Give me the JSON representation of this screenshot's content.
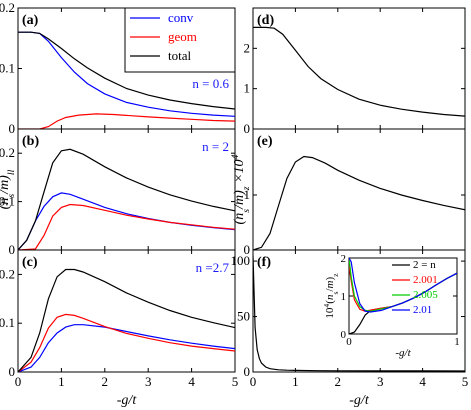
{
  "chart_data": [
    {
      "panel": "(a)",
      "type": "line",
      "annotation": "n = 0.6",
      "xlim": [
        0,
        5
      ],
      "ylim": [
        0,
        0.2
      ],
      "xticks": [
        "0",
        "1",
        "2",
        "3",
        "4",
        "5"
      ],
      "yticks": [
        "0",
        "0.1",
        "0.2"
      ],
      "ylabel": "",
      "series": [
        {
          "name": "conv",
          "color": "#0000ff",
          "x": [
            0,
            0.3,
            0.5,
            0.7,
            1.0,
            1.3,
            1.6,
            2.0,
            2.5,
            3.0,
            3.5,
            4.0,
            4.5,
            5.0
          ],
          "y": [
            0.16,
            0.16,
            0.158,
            0.145,
            0.118,
            0.094,
            0.075,
            0.058,
            0.044,
            0.036,
            0.03,
            0.026,
            0.023,
            0.021
          ]
        },
        {
          "name": "geom",
          "color": "#ff0000",
          "x": [
            0,
            0.5,
            0.7,
            0.9,
            1.1,
            1.4,
            1.8,
            2.2,
            2.6,
            3.0,
            3.5,
            4.0,
            4.5,
            5.0
          ],
          "y": [
            0,
            0,
            0.004,
            0.013,
            0.019,
            0.023,
            0.025,
            0.024,
            0.022,
            0.02,
            0.018,
            0.016,
            0.014,
            0.013
          ]
        },
        {
          "name": "total",
          "color": "#000000",
          "x": [
            0,
            0.3,
            0.5,
            0.7,
            1.0,
            1.3,
            1.6,
            2.0,
            2.5,
            3.0,
            3.5,
            4.0,
            4.5,
            5.0
          ],
          "y": [
            0.16,
            0.16,
            0.158,
            0.149,
            0.133,
            0.116,
            0.101,
            0.084,
            0.067,
            0.056,
            0.048,
            0.042,
            0.037,
            0.033
          ]
        }
      ]
    },
    {
      "panel": "(b)",
      "type": "line",
      "annotation": "n = 2",
      "xlim": [
        0,
        5
      ],
      "ylim": [
        0,
        0.25
      ],
      "xticks": [
        "0",
        "1",
        "2",
        "3",
        "4",
        "5"
      ],
      "yticks": [
        "0",
        "0.1",
        "0.2"
      ],
      "ylabel": "(n_s/m)_ll",
      "series": [
        {
          "name": "conv",
          "color": "#0000ff",
          "x": [
            0,
            0.2,
            0.4,
            0.6,
            0.8,
            1.0,
            1.2,
            1.5,
            2.0,
            2.5,
            3.0,
            3.5,
            4.0,
            4.5,
            5.0
          ],
          "y": [
            0,
            0.02,
            0.06,
            0.09,
            0.11,
            0.118,
            0.115,
            0.105,
            0.088,
            0.075,
            0.065,
            0.057,
            0.051,
            0.046,
            0.042
          ]
        },
        {
          "name": "geom",
          "color": "#ff0000",
          "x": [
            0,
            0.4,
            0.6,
            0.8,
            1.0,
            1.2,
            1.5,
            2.0,
            2.5,
            3.0,
            3.5,
            4.0,
            4.5,
            5.0
          ],
          "y": [
            0,
            0.002,
            0.03,
            0.07,
            0.088,
            0.094,
            0.092,
            0.082,
            0.072,
            0.064,
            0.057,
            0.052,
            0.047,
            0.043
          ]
        },
        {
          "name": "total",
          "color": "#000000",
          "x": [
            0,
            0.2,
            0.4,
            0.6,
            0.8,
            1.0,
            1.2,
            1.5,
            2.0,
            2.5,
            3.0,
            3.5,
            4.0,
            4.5,
            5.0
          ],
          "y": [
            0,
            0.02,
            0.06,
            0.12,
            0.18,
            0.205,
            0.208,
            0.198,
            0.172,
            0.149,
            0.13,
            0.114,
            0.101,
            0.09,
            0.081
          ]
        }
      ]
    },
    {
      "panel": "(c)",
      "type": "line",
      "annotation": "n =2.7",
      "xlim": [
        0,
        5
      ],
      "ylim": [
        0,
        0.25
      ],
      "xticks": [
        "0",
        "1",
        "2",
        "3",
        "4",
        "5"
      ],
      "yticks": [
        "0",
        "0.1",
        "0.2"
      ],
      "xlabel": "-g/t",
      "series": [
        {
          "name": "conv",
          "color": "#0000ff",
          "x": [
            0,
            0.3,
            0.5,
            0.7,
            0.9,
            1.1,
            1.3,
            1.5,
            2.0,
            2.5,
            3.0,
            3.5,
            4.0,
            4.5,
            5.0
          ],
          "y": [
            0,
            0.01,
            0.03,
            0.06,
            0.08,
            0.092,
            0.097,
            0.097,
            0.092,
            0.083,
            0.074,
            0.066,
            0.059,
            0.053,
            0.048
          ]
        },
        {
          "name": "geom",
          "color": "#ff0000",
          "x": [
            0,
            0.3,
            0.5,
            0.7,
            0.9,
            1.1,
            1.3,
            1.5,
            2.0,
            2.5,
            3.0,
            3.5,
            4.0,
            4.5,
            5.0
          ],
          "y": [
            0,
            0.02,
            0.05,
            0.09,
            0.112,
            0.118,
            0.116,
            0.11,
            0.093,
            0.079,
            0.069,
            0.06,
            0.053,
            0.048,
            0.043
          ]
        },
        {
          "name": "total",
          "color": "#000000",
          "x": [
            0,
            0.3,
            0.5,
            0.7,
            0.9,
            1.1,
            1.3,
            1.5,
            2.0,
            2.5,
            3.0,
            3.5,
            4.0,
            4.5,
            5.0
          ],
          "y": [
            0,
            0.03,
            0.08,
            0.15,
            0.195,
            0.21,
            0.21,
            0.205,
            0.185,
            0.162,
            0.143,
            0.126,
            0.112,
            0.101,
            0.091
          ]
        }
      ]
    },
    {
      "panel": "(d)",
      "type": "line",
      "xlim": [
        0,
        5
      ],
      "ylim": [
        0,
        3
      ],
      "xticks": [
        "0",
        "1",
        "2",
        "3",
        "4",
        "5"
      ],
      "yticks": [
        "0",
        "1",
        "2"
      ],
      "series": [
        {
          "color": "#000000",
          "x": [
            0,
            0.3,
            0.5,
            0.7,
            1.0,
            1.3,
            1.6,
            2.0,
            2.5,
            3.0,
            3.5,
            4.0,
            4.5,
            5.0
          ],
          "y": [
            2.52,
            2.52,
            2.5,
            2.35,
            1.95,
            1.55,
            1.25,
            0.98,
            0.74,
            0.59,
            0.49,
            0.42,
            0.36,
            0.32
          ]
        }
      ]
    },
    {
      "panel": "(e)",
      "type": "line",
      "xlim": [
        0,
        5
      ],
      "ylim": [
        0,
        2.2
      ],
      "xticks": [
        "0",
        "1",
        "2",
        "3",
        "4",
        "5"
      ],
      "yticks": [
        "0",
        "1"
      ],
      "ylabel": "(n_s/m)_z ×10^4",
      "series": [
        {
          "color": "#000000",
          "x": [
            0,
            0.2,
            0.4,
            0.6,
            0.8,
            1.0,
            1.2,
            1.4,
            1.7,
            2.0,
            2.5,
            3.0,
            3.5,
            4.0,
            4.5,
            5.0
          ],
          "y": [
            0,
            0.05,
            0.3,
            0.8,
            1.3,
            1.6,
            1.7,
            1.68,
            1.58,
            1.45,
            1.27,
            1.12,
            1.0,
            0.9,
            0.81,
            0.73
          ]
        }
      ]
    },
    {
      "panel": "(f)",
      "type": "line",
      "xlim": [
        0,
        5
      ],
      "ylim": [
        0,
        110
      ],
      "xticks": [
        "0",
        "1",
        "2",
        "3",
        "4",
        "5"
      ],
      "yticks": [
        "0",
        "50",
        "100"
      ],
      "xlabel": "-g/t",
      "series": [
        {
          "color": "#000000",
          "x": [
            0,
            0.05,
            0.1,
            0.15,
            0.2,
            0.3,
            0.4,
            0.6,
            0.8,
            1.0,
            1.5,
            2.0,
            3.0,
            4.0,
            5.0
          ],
          "y": [
            105,
            40,
            20,
            12,
            8,
            4.5,
            3,
            2,
            1.6,
            1.4,
            1.2,
            1.1,
            1.0,
            0.95,
            0.9
          ]
        }
      ]
    },
    {
      "panel": "(f) inset",
      "type": "line",
      "xlim": [
        0,
        1
      ],
      "ylim": [
        0,
        2
      ],
      "xticks": [
        "0",
        "1"
      ],
      "yticks": [
        "0",
        "1",
        "2"
      ],
      "xlabel": "-g/t",
      "ylabel": "10^4(n_s/m)_z",
      "legend": "top-right",
      "series": [
        {
          "name": "2 = n",
          "color": "#000000",
          "x": [
            0,
            0.05,
            0.1,
            0.15,
            0.2,
            0.3,
            0.4,
            0.5,
            0.6,
            0.7,
            0.8,
            0.9,
            1.0
          ],
          "y": [
            0,
            0.05,
            0.25,
            0.5,
            0.62,
            0.68,
            0.72,
            0.82,
            0.95,
            1.1,
            1.28,
            1.45,
            1.6
          ]
        },
        {
          "name": "2.001",
          "color": "#ff0000",
          "x": [
            0,
            0.02,
            0.05,
            0.1,
            0.15,
            0.2,
            0.3,
            0.4,
            0.5,
            0.6,
            0.7,
            0.8,
            0.9,
            1.0
          ],
          "y": [
            1.8,
            1.4,
            0.9,
            0.65,
            0.6,
            0.63,
            0.68,
            0.72,
            0.82,
            0.95,
            1.1,
            1.28,
            1.45,
            1.6
          ]
        },
        {
          "name": "2.005",
          "color": "#00cc00",
          "x": [
            0,
            0.02,
            0.05,
            0.1,
            0.15,
            0.2,
            0.3,
            0.4,
            0.5,
            0.6,
            0.7,
            0.8,
            0.9,
            1.0
          ],
          "y": [
            2.0,
            1.5,
            1.0,
            0.72,
            0.62,
            0.6,
            0.66,
            0.72,
            0.82,
            0.95,
            1.1,
            1.28,
            1.45,
            1.6
          ]
        },
        {
          "name": "2.01",
          "color": "#0000ff",
          "x": [
            0,
            0.02,
            0.05,
            0.1,
            0.15,
            0.2,
            0.3,
            0.4,
            0.5,
            0.6,
            0.7,
            0.8,
            0.9,
            1.0
          ],
          "y": [
            2.0,
            1.9,
            1.35,
            0.8,
            0.6,
            0.58,
            0.62,
            0.72,
            0.82,
            0.95,
            1.1,
            1.28,
            1.45,
            1.6
          ]
        }
      ]
    }
  ]
}
